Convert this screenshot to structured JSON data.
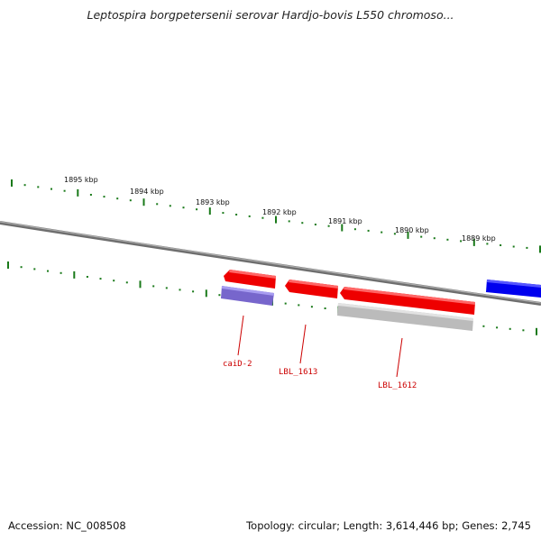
{
  "title": "Leptospira borgpetersenii serovar Hardjo-bovis L550 chromoso...",
  "footer": {
    "accession": "Accession: NC_008508",
    "topology": "Topology: circular; Length: 3,614,446 bp; Genes: 2,745"
  },
  "colors": {
    "backbone": "#888888",
    "tick": "#1a7a1a",
    "gene_red": "#ee0000",
    "gene_purple": "#7766cc",
    "gene_gray": "#bbbbbb",
    "gene_blue": "#0000ee",
    "label": "#cc0000"
  },
  "ruler": {
    "labels": [
      "1895 kbp",
      "1894 kbp",
      "1893 kbp",
      "1892 kbp",
      "1891 kbp",
      "1890 kbp",
      "1889 kbp"
    ]
  },
  "genes": [
    {
      "label": "caiD-2",
      "color": "purple"
    },
    {
      "label": "LBL_1613",
      "color": "red"
    },
    {
      "label": "LBL_1612",
      "color": "gray"
    }
  ],
  "unlabeled_features": [
    {
      "color": "red",
      "description": "above caiD-2"
    },
    {
      "color": "red",
      "description": "above LBL_1612"
    },
    {
      "color": "blue",
      "description": "right edge"
    }
  ]
}
